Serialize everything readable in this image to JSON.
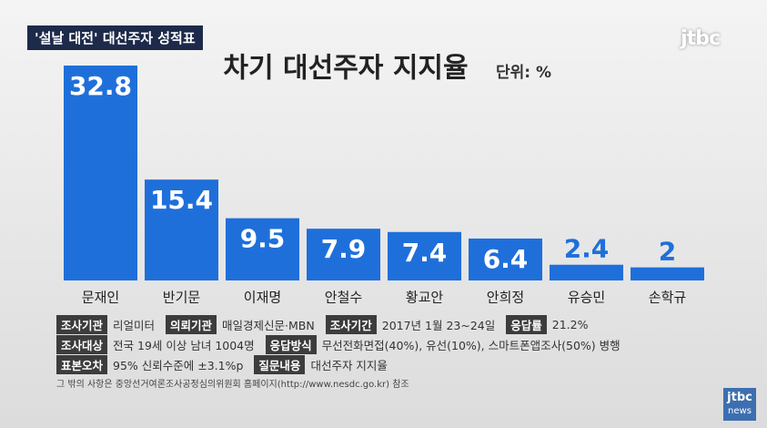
{
  "header": {
    "tag": "'설날 대전' 대선주자 성적표"
  },
  "logo": "jtbc",
  "chart_data": {
    "type": "bar",
    "title": "차기 대선주자 지지율",
    "subtitle": "단위: %",
    "categories": [
      "문재인",
      "반기문",
      "이재명",
      "안철수",
      "황교안",
      "안희정",
      "유승민",
      "손학규"
    ],
    "values": [
      32.8,
      15.4,
      9.5,
      7.9,
      7.4,
      6.4,
      2.4,
      2
    ],
    "color": "#1f6fdb"
  },
  "info": {
    "rows": [
      [
        {
          "label": "조사기관",
          "value": "리얼미터"
        },
        {
          "label": "의뢰기관",
          "value": "매일경제신문·MBN"
        },
        {
          "label": "조사기간",
          "value": "2017년 1월 23~24일"
        },
        {
          "label": "응답률",
          "value": "21.2%"
        }
      ],
      [
        {
          "label": "조사대상",
          "value": "전국 19세 이상 남녀 1004명"
        },
        {
          "label": "응답방식",
          "value": "무선전화면접(40%), 유선(10%), 스마트폰앱조사(50%) 병행"
        }
      ],
      [
        {
          "label": "표본오차",
          "value": "95% 신뢰수준에 ±3.1%p"
        },
        {
          "label": "질문내용",
          "value": "대선주자 지지율"
        }
      ]
    ]
  },
  "footnote": "그 밖의 사항은 중앙선거여론조사공정심의위원회 홈페이지(http://www.nesdc.go.kr) 참조",
  "corner_logo": {
    "brand": "jtbc",
    "sub": "news"
  }
}
